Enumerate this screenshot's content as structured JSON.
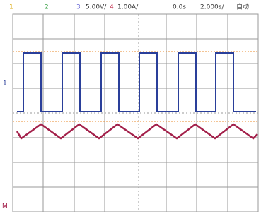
{
  "header": {
    "ch1": "1",
    "ch2": "2",
    "ch3": "3",
    "ch3_scale": "5.00V/",
    "ch4": "4",
    "ch4_scale": "1.00A/",
    "time_offset": "0.0s",
    "time_scale": "2.000s/",
    "trigger_mode": "自动"
  },
  "markers": {
    "ch3": "1",
    "ch4": "M"
  }
}
